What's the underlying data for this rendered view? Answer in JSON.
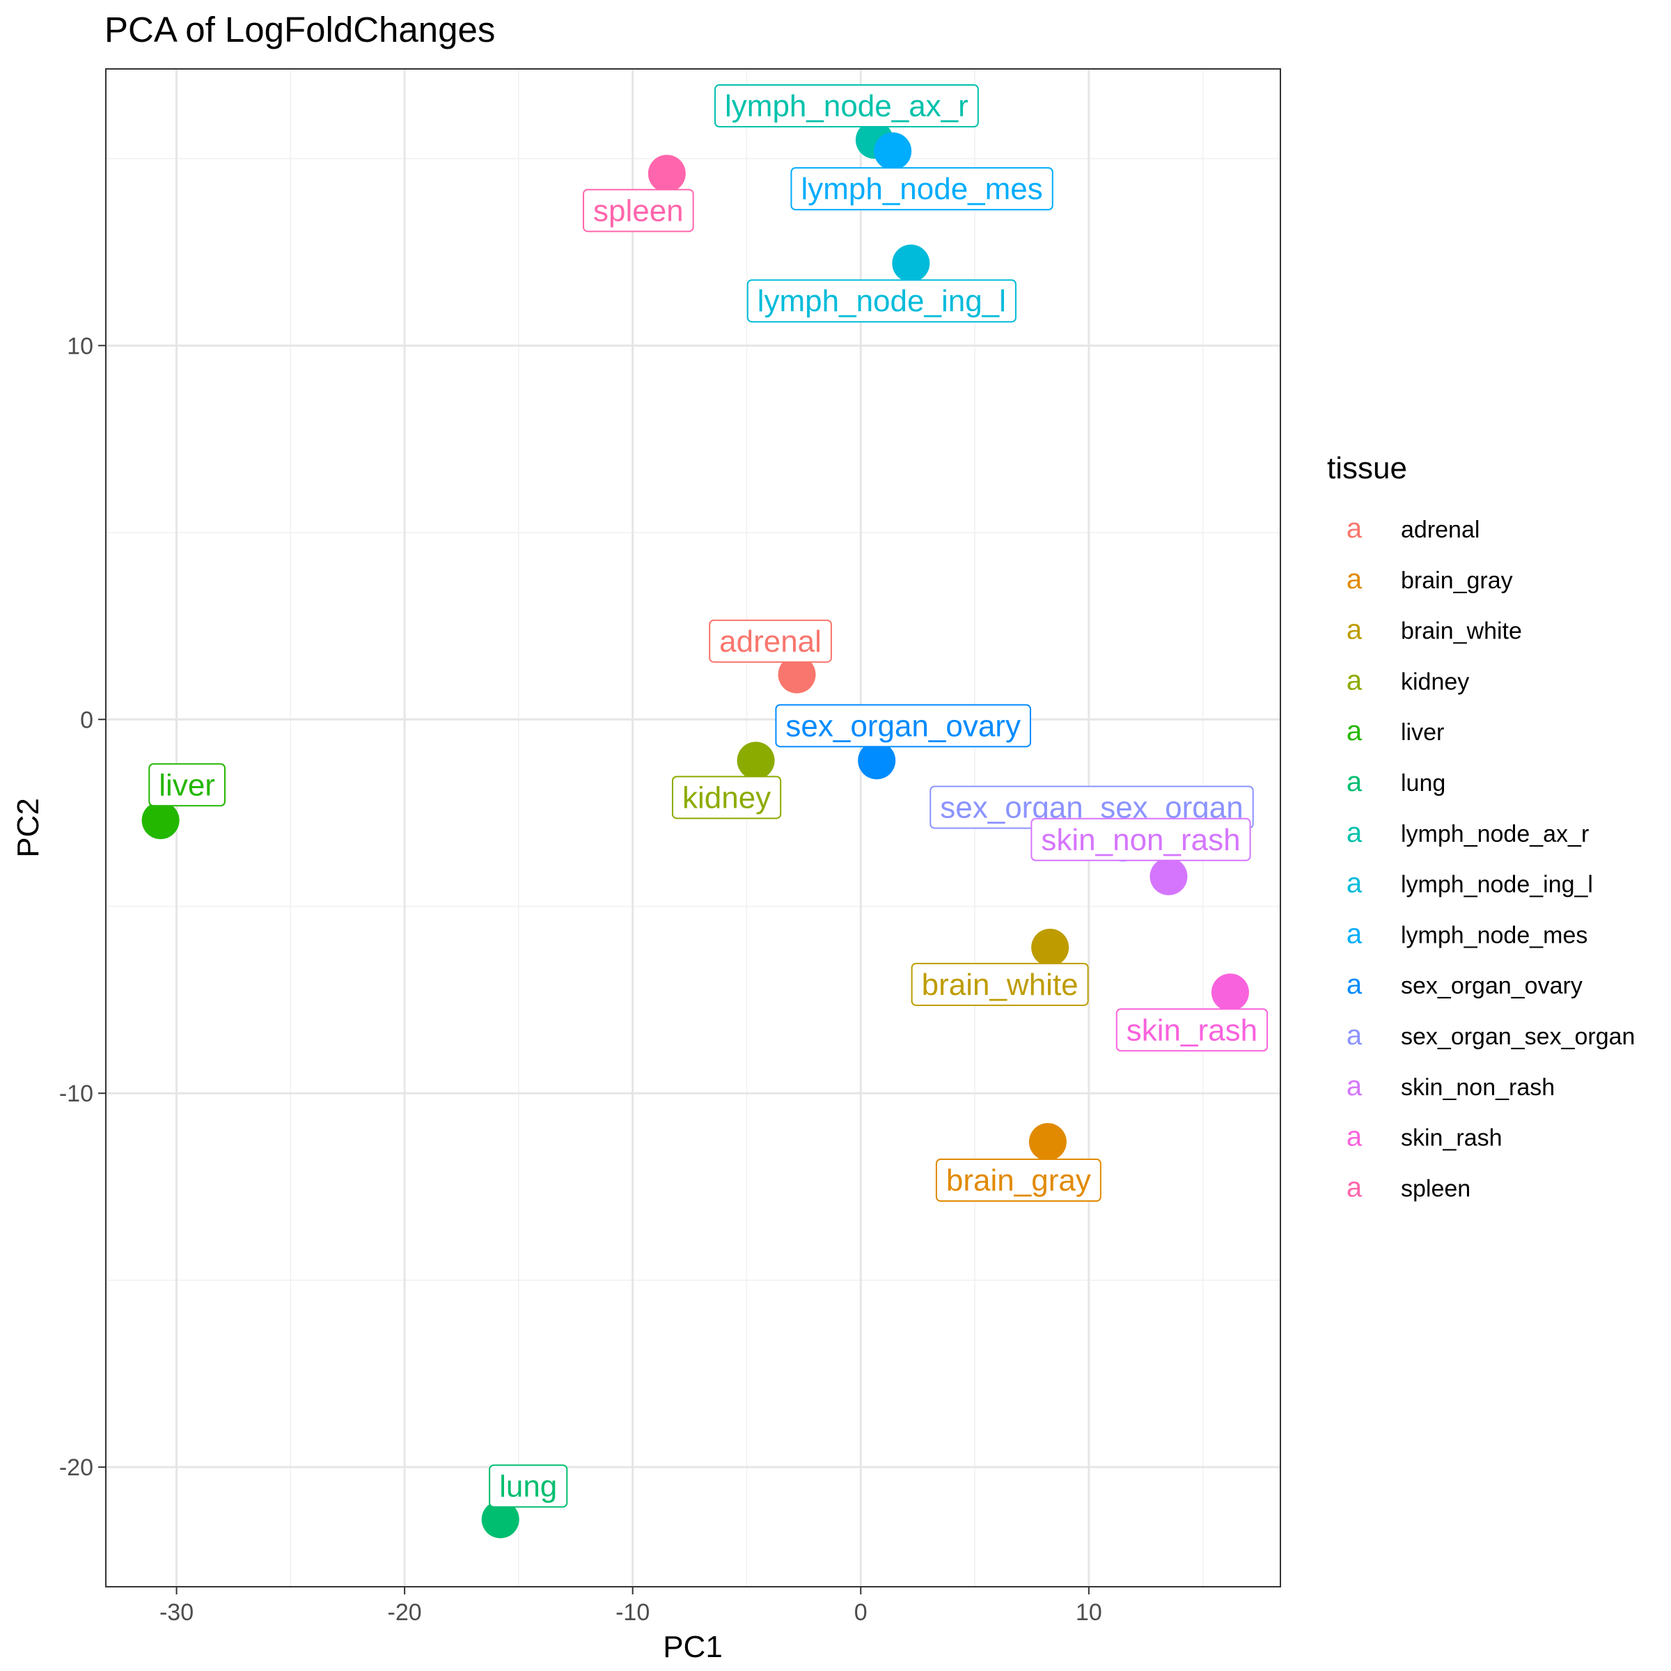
{
  "chart_data": {
    "type": "scatter",
    "title": "PCA of LogFoldChanges",
    "xlabel": "PC1",
    "ylabel": "PC2",
    "xlim": [
      -33.1,
      18.4
    ],
    "ylim": [
      -23.2,
      17.4
    ],
    "x_ticks": [
      -30,
      -20,
      -10,
      0,
      10
    ],
    "x_tick_labels": [
      "-30",
      "-20",
      "-10",
      "0",
      "10"
    ],
    "y_ticks": [
      -20,
      -10,
      0,
      10
    ],
    "y_tick_labels": [
      "-20",
      "-10",
      "0",
      "10"
    ],
    "grid": true,
    "legend": {
      "title": "tissue",
      "position": "right",
      "key_glyph": "a"
    },
    "points": [
      {
        "label": "adrenal",
        "x": -2.8,
        "y": 1.2,
        "color": "#F8766D"
      },
      {
        "label": "brain_gray",
        "x": 8.2,
        "y": -11.3,
        "color": "#E18A00"
      },
      {
        "label": "brain_white",
        "x": 8.3,
        "y": -6.1,
        "color": "#BE9C00"
      },
      {
        "label": "kidney",
        "x": -4.6,
        "y": -1.1,
        "color": "#8CAB00"
      },
      {
        "label": "liver",
        "x": -30.7,
        "y": -2.7,
        "color": "#24B700"
      },
      {
        "label": "lung",
        "x": -15.8,
        "y": -21.4,
        "color": "#00BE70"
      },
      {
        "label": "lymph_node_ax_r",
        "x": 0.6,
        "y": 15.5,
        "color": "#00C1AB"
      },
      {
        "label": "lymph_node_ing_l",
        "x": 2.2,
        "y": 12.2,
        "color": "#00BBDA"
      },
      {
        "label": "lymph_node_mes",
        "x": 1.4,
        "y": 15.2,
        "color": "#00ACFC"
      },
      {
        "label": "sex_organ_ovary",
        "x": 0.7,
        "y": -1.1,
        "color": "#008BFF"
      },
      {
        "label": "sex_organ_sex_organ",
        "x": 11.5,
        "y": -3.3,
        "color": "#8B93FF"
      },
      {
        "label": "skin_non_rash",
        "x": 13.5,
        "y": -4.2,
        "color": "#D575FE"
      },
      {
        "label": "skin_rash",
        "x": 16.2,
        "y": -7.3,
        "color": "#F962DD"
      },
      {
        "label": "spleen",
        "x": -8.5,
        "y": 14.6,
        "color": "#FF65AC"
      }
    ]
  }
}
